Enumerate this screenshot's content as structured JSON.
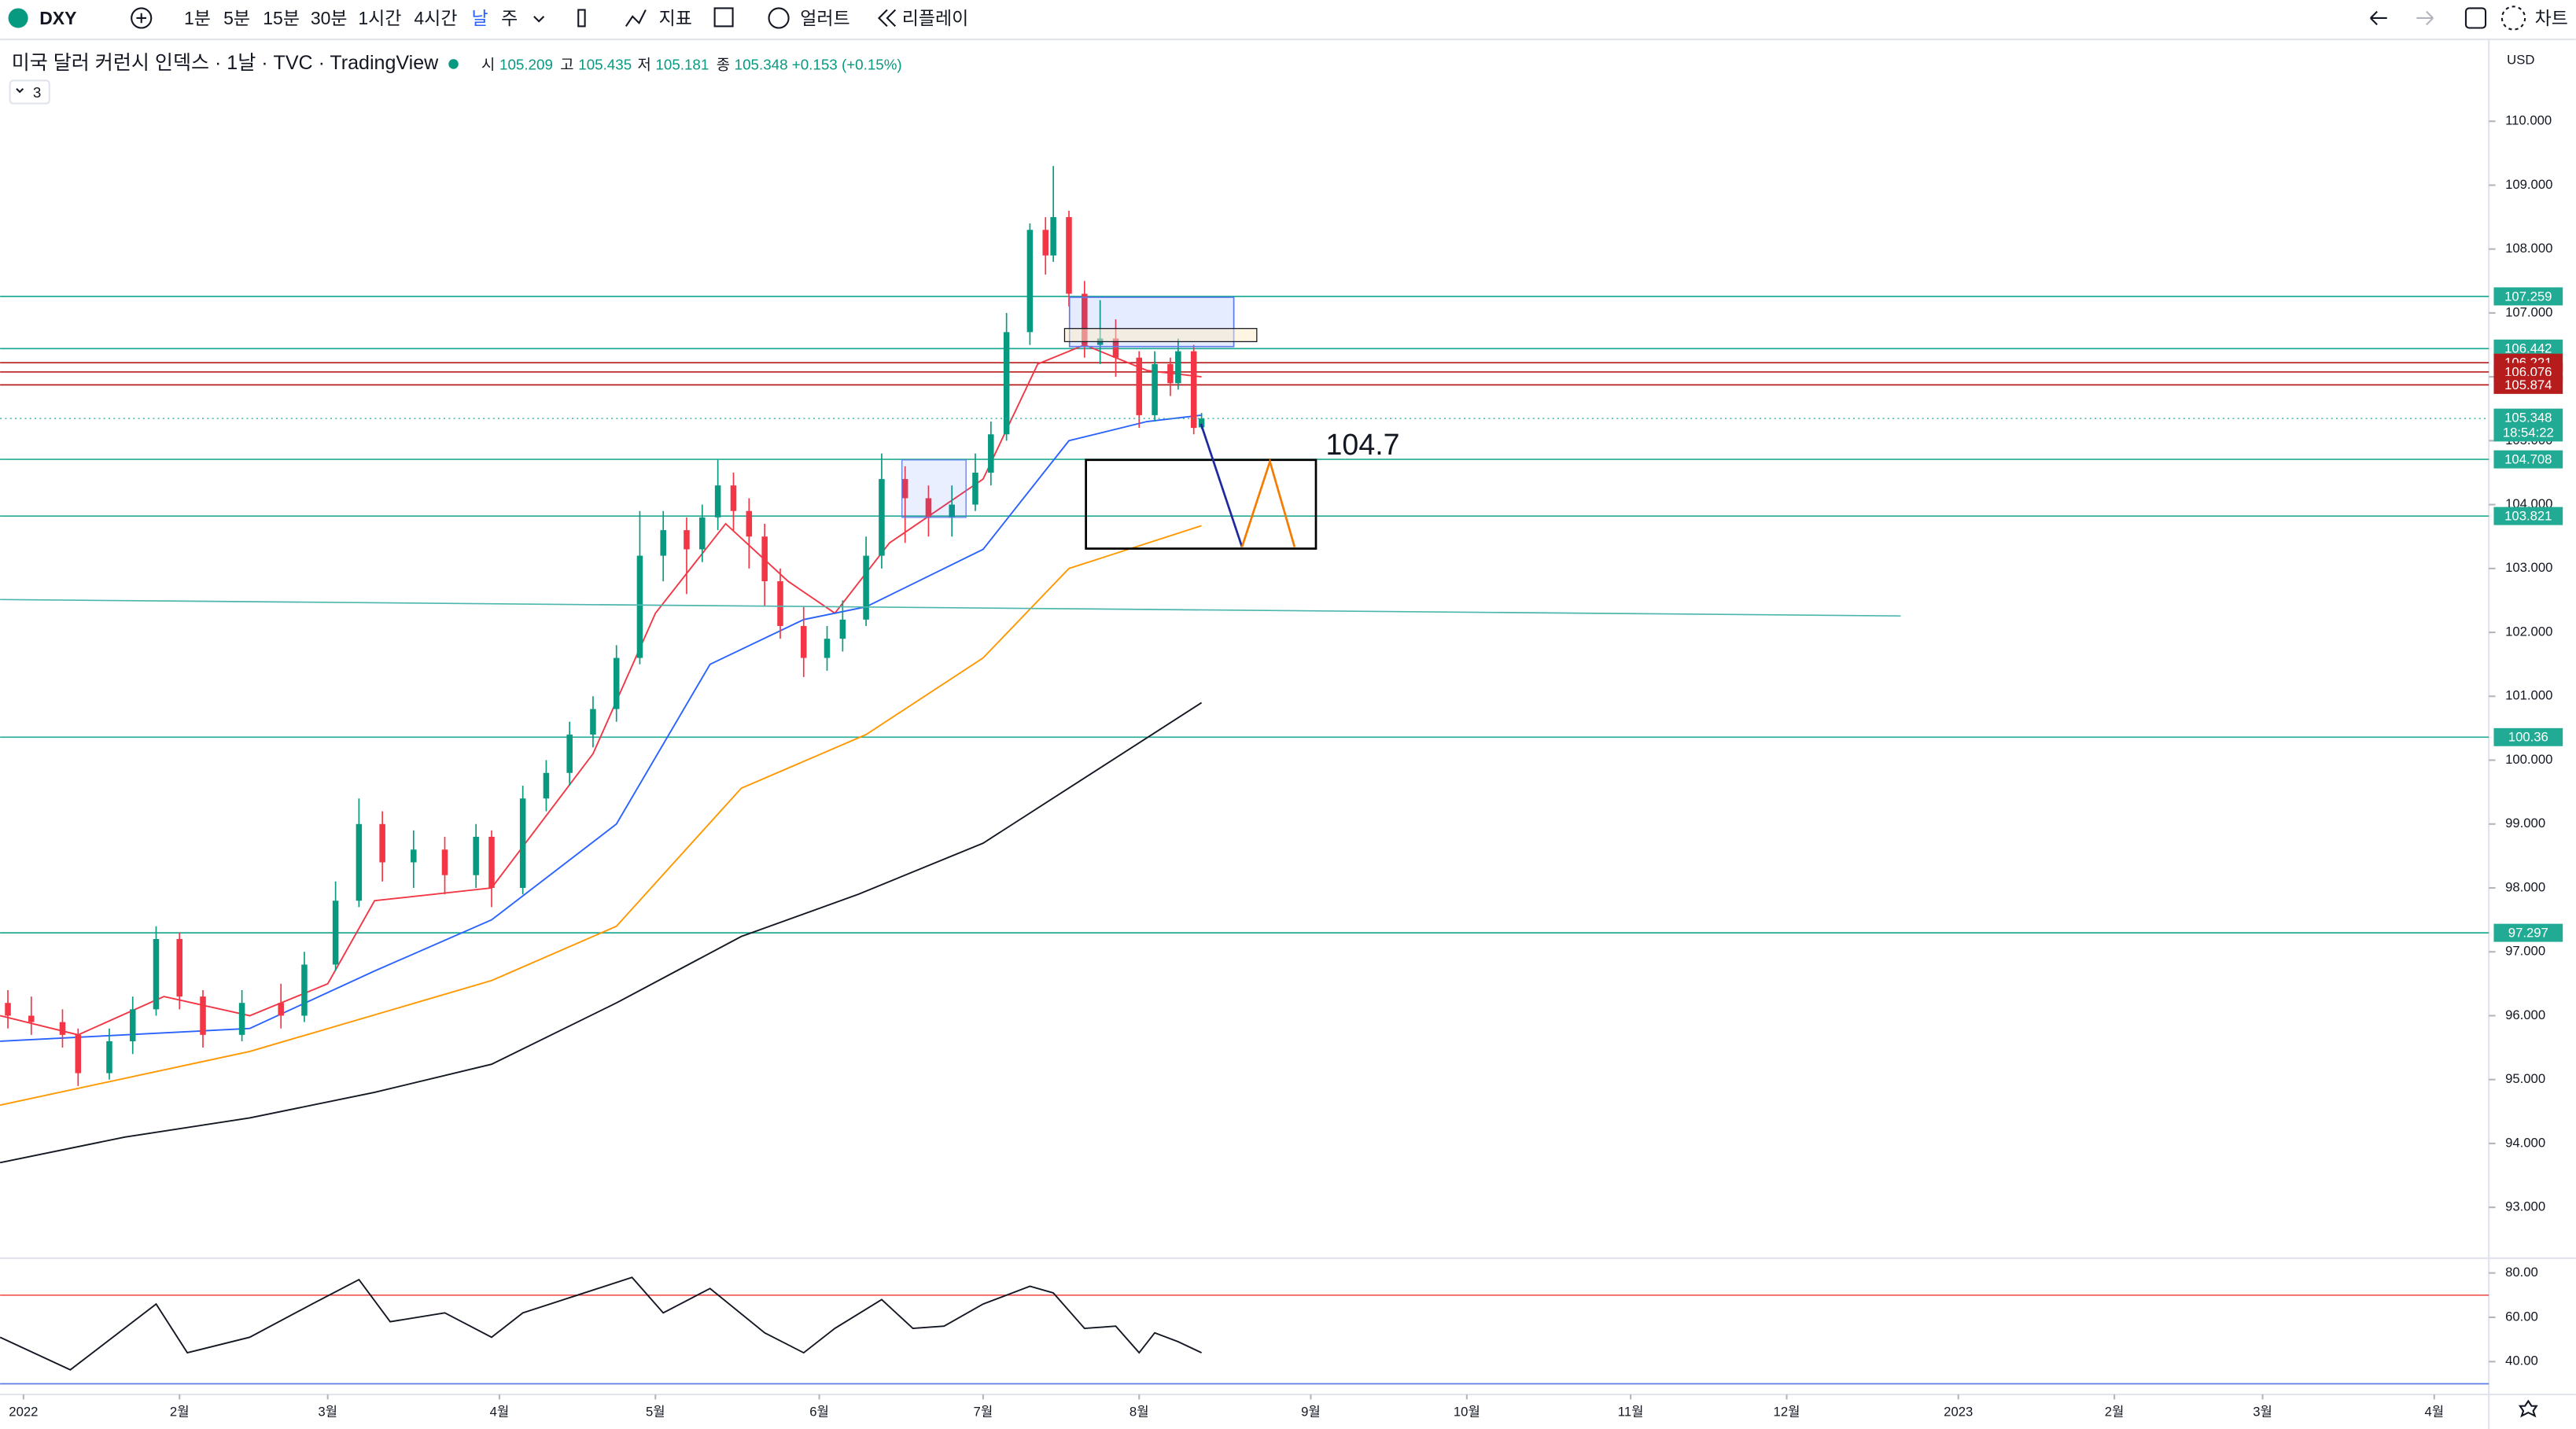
{
  "toolbar": {
    "symbol": "DXY",
    "intervals": [
      "1분",
      "5분",
      "15분",
      "30분",
      "1시간",
      "4시간",
      "날",
      "주"
    ],
    "indicators": "지표",
    "alert": "얼러트",
    "replay": "리플레이",
    "chart": "차트"
  },
  "legend": {
    "title": "미국 달러 커런시 인덱스 · 1날 · TVC · TradingView",
    "o": "시",
    "h": "고",
    "l": "저",
    "c": "종",
    "change": "+0.153 (+0.15%)",
    "indicator_count": 3
  },
  "chart_data": [
    {
      "type": "candlestick",
      "currency": "USD",
      "up_color": "#089981",
      "down_color": "#f23645",
      "x": [
        1,
        4,
        8,
        10,
        14,
        17,
        20,
        23,
        26,
        31,
        36,
        39,
        43,
        46,
        49,
        53,
        57,
        61,
        63,
        67,
        70,
        73,
        76,
        79,
        82,
        85,
        88,
        90,
        92,
        94,
        96,
        98,
        100,
        103,
        106,
        108,
        111,
        113,
        116,
        119,
        122,
        125,
        127,
        129,
        132,
        134,
        135,
        137,
        139,
        141,
        143,
        146,
        148,
        150,
        151,
        153,
        154
      ],
      "open": [
        96.2,
        96.0,
        95.9,
        95.7,
        95.1,
        95.6,
        96.1,
        97.2,
        96.3,
        95.7,
        96.2,
        96.0,
        96.8,
        97.8,
        99.0,
        98.4,
        98.6,
        98.2,
        98.8,
        98.0,
        99.4,
        99.8,
        100.4,
        100.8,
        101.6,
        103.2,
        103.6,
        103.3,
        103.8,
        104.3,
        103.9,
        103.5,
        102.8,
        102.1,
        101.6,
        101.9,
        102.2,
        103.2,
        104.4,
        104.1,
        103.8,
        104.0,
        104.5,
        105.1,
        106.7,
        108.3,
        107.9,
        108.5,
        107.3,
        106.5,
        106.6,
        106.3,
        105.4,
        106.2,
        105.9,
        106.4,
        105.209
      ],
      "high": [
        96.4,
        96.3,
        96.1,
        95.8,
        95.8,
        96.3,
        97.4,
        97.3,
        96.4,
        96.4,
        96.5,
        97.0,
        98.1,
        99.4,
        99.2,
        98.9,
        98.8,
        99.0,
        98.9,
        99.6,
        100.0,
        100.6,
        101.0,
        101.8,
        103.9,
        103.9,
        103.8,
        104.0,
        104.7,
        104.5,
        104.1,
        103.7,
        103.0,
        102.4,
        102.1,
        102.5,
        103.5,
        104.8,
        104.6,
        104.3,
        104.3,
        104.8,
        105.3,
        107.0,
        108.4,
        108.5,
        109.3,
        108.6,
        107.5,
        107.2,
        106.9,
        106.4,
        106.4,
        106.3,
        106.6,
        106.5,
        105.435
      ],
      "low": [
        95.8,
        95.7,
        95.5,
        94.9,
        95.0,
        95.4,
        96.0,
        96.1,
        95.5,
        95.6,
        95.8,
        95.9,
        96.7,
        97.7,
        98.1,
        98.0,
        97.9,
        98.0,
        97.7,
        97.9,
        99.2,
        99.6,
        100.2,
        100.6,
        101.5,
        102.8,
        102.6,
        103.1,
        103.6,
        103.6,
        103.0,
        102.4,
        101.9,
        101.3,
        101.4,
        101.7,
        102.1,
        103.0,
        103.4,
        103.5,
        103.5,
        103.9,
        104.3,
        105.0,
        106.5,
        107.6,
        107.8,
        107.1,
        106.3,
        106.2,
        106.0,
        105.2,
        105.3,
        105.7,
        105.8,
        105.1,
        105.181
      ],
      "close": [
        96.0,
        95.9,
        95.7,
        95.1,
        95.6,
        96.1,
        97.2,
        96.3,
        95.7,
        96.2,
        96.0,
        96.8,
        97.8,
        99.0,
        98.4,
        98.6,
        98.2,
        98.8,
        98.0,
        99.4,
        99.8,
        100.4,
        100.8,
        101.6,
        103.2,
        103.6,
        103.3,
        103.8,
        104.3,
        103.9,
        103.5,
        102.8,
        102.1,
        101.6,
        101.9,
        102.2,
        103.2,
        104.4,
        104.1,
        103.8,
        104.0,
        104.5,
        105.1,
        106.7,
        108.3,
        107.9,
        108.5,
        107.3,
        106.5,
        106.6,
        106.3,
        105.4,
        106.2,
        105.9,
        106.4,
        105.2,
        105.348
      ],
      "series": [
        {
          "color": "#f23645",
          "x": [
            0,
            10,
            21,
            32,
            42,
            48,
            63,
            76,
            84,
            93,
            101,
            107,
            114,
            126,
            133,
            139,
            147,
            154
          ],
          "values": [
            96.0,
            95.7,
            96.3,
            96.0,
            96.5,
            97.8,
            98.0,
            100.1,
            102.3,
            103.7,
            102.8,
            102.3,
            103.4,
            104.4,
            106.2,
            106.5,
            106.1,
            106.0
          ]
        },
        {
          "color": "#2962ff",
          "x": [
            0,
            32,
            48,
            63,
            79,
            91,
            103,
            111,
            126,
            137,
            147,
            154
          ],
          "values": [
            95.6,
            95.8,
            96.7,
            97.5,
            99.0,
            101.5,
            102.2,
            102.4,
            103.3,
            105.0,
            105.3,
            105.4
          ]
        },
        {
          "color": "#ff9800",
          "x": [
            0,
            32,
            63,
            79,
            95,
            111,
            126,
            137,
            154
          ],
          "values": [
            94.6,
            95.44,
            96.55,
            97.4,
            99.56,
            100.4,
            101.6,
            103.0,
            103.67
          ]
        },
        {
          "color": "#131722",
          "x": [
            0,
            16,
            32,
            48,
            63,
            79,
            95,
            110,
            126,
            140,
            154
          ],
          "values": [
            93.7,
            94.1,
            94.4,
            94.8,
            95.24,
            96.2,
            97.24,
            97.9,
            98.7,
            99.8,
            100.9
          ]
        }
      ],
      "levels": [
        {
          "value": 107.259,
          "color": "#22ab94"
        },
        {
          "value": 106.442,
          "color": "#22ab94"
        },
        {
          "value": 106.221,
          "color": "#b71c1c"
        },
        {
          "value": 106.076,
          "color": "#b71c1c"
        },
        {
          "value": 105.874,
          "color": "#b71c1c"
        },
        {
          "value": 104.708,
          "color": "#22ab94"
        },
        {
          "value": 103.821,
          "color": "#22ab94"
        },
        {
          "value": 100.36,
          "color": "#22ab94"
        },
        {
          "value": 97.297,
          "color": "#22ab94"
        }
      ],
      "countdown": "18:54:22",
      "annotation": "104.7",
      "xlim": [
        0,
        319
      ],
      "xticks": [
        {
          "value": 3,
          "label": "2022"
        },
        {
          "value": 23,
          "label": "2월"
        },
        {
          "value": 42,
          "label": "3월"
        },
        {
          "value": 64,
          "label": "4월"
        },
        {
          "value": 84,
          "label": "5월"
        },
        {
          "value": 105,
          "label": "6월"
        },
        {
          "value": 126,
          "label": "7월"
        },
        {
          "value": 146,
          "label": "8월"
        },
        {
          "value": 168,
          "label": "9월"
        },
        {
          "value": 188,
          "label": "10월"
        },
        {
          "value": 209,
          "label": "11월"
        },
        {
          "value": 229,
          "label": "12월"
        },
        {
          "value": 251,
          "label": "2023"
        },
        {
          "value": 271,
          "label": "2월"
        },
        {
          "value": 290,
          "label": "3월"
        },
        {
          "value": 312,
          "label": "4월"
        }
      ],
      "ylim": [
        92.23,
        111.23
      ],
      "yticks": [
        {
          "value": 93,
          "label": "93.000"
        },
        {
          "value": 94,
          "label": "94.000"
        },
        {
          "value": 95,
          "label": "95.000"
        },
        {
          "value": 96,
          "label": "96.000"
        },
        {
          "value": 97,
          "label": "97.000"
        },
        {
          "value": 98,
          "label": "98.000"
        },
        {
          "value": 99,
          "label": "99.000"
        },
        {
          "value": 100,
          "label": "100.000"
        },
        {
          "value": 101,
          "label": "101.000"
        },
        {
          "value": 102,
          "label": "102.000"
        },
        {
          "value": 103,
          "label": "103.000"
        },
        {
          "value": 104,
          "label": "104.000"
        },
        {
          "value": 105,
          "label": "105.000"
        },
        {
          "value": 106,
          "label": "106.000"
        },
        {
          "value": 107,
          "label": "107.000"
        },
        {
          "value": 108,
          "label": "108.000"
        },
        {
          "value": 109,
          "label": "109.000"
        },
        {
          "value": 110,
          "label": "110.000"
        }
      ]
    },
    {
      "type": "line",
      "color": "#131722",
      "x": [
        0,
        9,
        20,
        24,
        32,
        40,
        46,
        50,
        57,
        63,
        67,
        74,
        81,
        85,
        91,
        98,
        103,
        107,
        113,
        117,
        121,
        126,
        132,
        135,
        139,
        143,
        146,
        148,
        151,
        154
      ],
      "values": [
        51,
        36.3,
        66,
        44,
        51,
        66,
        77,
        58,
        62,
        51,
        62,
        70,
        78,
        62,
        73,
        53,
        44,
        55,
        68,
        55,
        56,
        66,
        74,
        71,
        55,
        56,
        44,
        53,
        49,
        44
      ],
      "levels": [
        {
          "value": 70,
          "color": "#ef5350"
        },
        {
          "value": 30,
          "color": "#5b7ce8"
        }
      ],
      "ylim": [
        25.9,
        85.2
      ],
      "yticks": [
        {
          "value": 40,
          "label": "40.00"
        },
        {
          "value": 60,
          "label": "60.00"
        },
        {
          "value": 80,
          "label": "80.00"
        }
      ]
    }
  ]
}
